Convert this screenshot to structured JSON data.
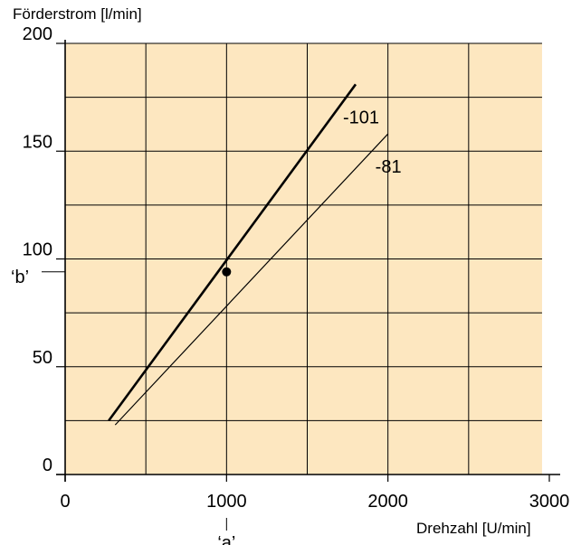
{
  "chart_data": {
    "type": "line",
    "title": "",
    "ylabel": "Förderstrom [l/min]",
    "xlabel": "Drehzahl [U/min]",
    "xlim": [
      0,
      3000
    ],
    "ylim": [
      0,
      200
    ],
    "x_ticks": [
      0,
      1000,
      2000,
      3000
    ],
    "y_ticks": [
      0,
      50,
      100,
      150,
      200
    ],
    "grid": true,
    "plot_background": "#fde7c0",
    "grid_color": "#000000",
    "series": [
      {
        "name": "-101",
        "x": [
          270,
          1800
        ],
        "y": [
          25,
          181
        ],
        "color": "#000000",
        "weight": "bold"
      },
      {
        "name": "-81",
        "x": [
          310,
          2000
        ],
        "y": [
          23,
          158
        ],
        "color": "#000000",
        "weight": "thin"
      }
    ],
    "marker": {
      "x": 1000,
      "y": 94
    },
    "annotations": [
      {
        "text": "‘b’",
        "refers_to": "y",
        "value": 94
      },
      {
        "text": "‘a’",
        "refers_to": "x",
        "value": 1000
      }
    ]
  }
}
